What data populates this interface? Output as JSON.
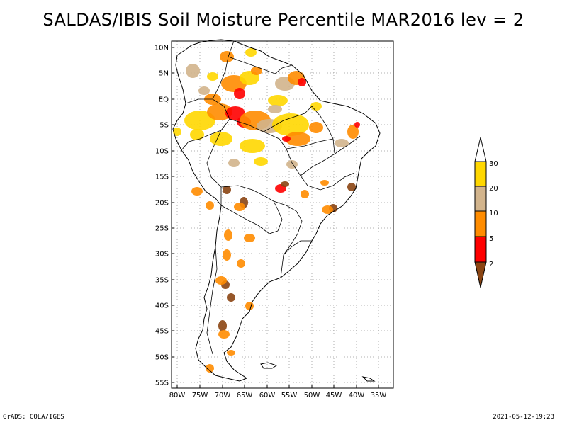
{
  "title": "SALDAS/IBIS Soil Moisture Percentile MAR2016 lev = 2",
  "lat_labels": [
    "10N",
    "5N",
    "EQ",
    "5S",
    "10S",
    "15S",
    "20S",
    "25S",
    "30S",
    "35S",
    "40S",
    "45S",
    "50S",
    "55S"
  ],
  "lon_labels": [
    "80W",
    "75W",
    "70W",
    "65W",
    "60W",
    "55W",
    "50W",
    "45W",
    "40W",
    "35W"
  ],
  "legend": {
    "labels": [
      "30",
      "20",
      "10",
      "5",
      "2"
    ],
    "colors": {
      "above_30": "#ffffff",
      "20_30": "#ffd700",
      "10_20": "#d2b48c",
      "5_10": "#ff8c00",
      "2_5": "#ff0000",
      "below_2": "#8b4513"
    }
  },
  "footer": {
    "left": "GrADS: COLA/IGES",
    "right": "2021-05-12-19:23"
  }
}
